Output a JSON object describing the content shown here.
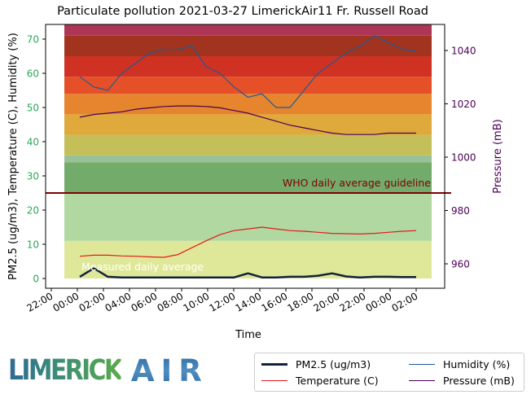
{
  "chart_data": {
    "type": "line",
    "title": "Particulate pollution 2021-03-27 LimerickAir11 Fr. Russell Road",
    "xlabel": "Time",
    "ylabel": "PM2.5 (ug/m3), Temperature (C), Humidity (%)",
    "ylabel_right": "Pressure (mB)",
    "ylim": [
      -1.5,
      75.5
    ],
    "ylim_right": [
      951,
      1050
    ],
    "yticks": [
      0,
      10,
      20,
      30,
      40,
      50,
      60,
      70
    ],
    "yticks_right": [
      960,
      980,
      1000,
      1020,
      1040
    ],
    "xticks": [
      "22:00",
      "00:00",
      "02:00",
      "04:00",
      "06:00",
      "08:00",
      "10:00",
      "12:00",
      "14:00",
      "16:00",
      "18:00",
      "20:00",
      "22:00",
      "00:00",
      "02:00"
    ],
    "grid": false,
    "legend_position": "below-right",
    "legend": [
      "PM2.5 (ug/m3)",
      "Temperature (C)",
      "Humidity (%)",
      "Pressure (mB)"
    ],
    "annotations": [
      {
        "text": "WHO daily average guideline",
        "y": 25,
        "color": "#7f0000"
      },
      {
        "text": "Measured daily average",
        "y": 1,
        "color": "#ffffff"
      }
    ],
    "guideline_value": 25,
    "x_hours": [
      0,
      1,
      2,
      3,
      4,
      5,
      6,
      7,
      8,
      9,
      10,
      11,
      12,
      13,
      14,
      15,
      16,
      17,
      18,
      19,
      20,
      21,
      22,
      23,
      24
    ],
    "series": [
      {
        "name": "PM2.5 (ug/m3)",
        "color": "#14213d",
        "values": [
          0.5,
          3,
          0.5,
          0.3,
          0.3,
          0.3,
          0.3,
          0.3,
          0.3,
          0.3,
          0.3,
          0.3,
          1.5,
          0.3,
          0.3,
          0.5,
          0.5,
          0.8,
          1.5,
          0.6,
          0.3,
          0.5,
          0.5,
          0.4,
          0.4
        ]
      },
      {
        "name": "Temperature (C)",
        "color": "#e41a1c",
        "values": [
          6.5,
          6.8,
          6.8,
          6.6,
          6.5,
          6.3,
          6.2,
          7.0,
          9.0,
          11.0,
          12.8,
          14.0,
          14.5,
          15.0,
          14.5,
          14.0,
          13.8,
          13.5,
          13.2,
          13.1,
          13.0,
          13.2,
          13.5,
          13.8,
          14.0
        ]
      },
      {
        "name": "Humidity (%)",
        "color": "#1f5a96",
        "values": [
          59,
          56,
          55,
          60,
          63,
          66,
          67,
          67,
          68,
          62,
          60,
          56,
          53,
          54,
          50,
          50,
          55,
          60,
          63,
          66,
          68,
          71,
          69,
          67,
          66.5
        ]
      },
      {
        "name": "Pressure (mB)",
        "color": "#4b0055",
        "values": [
          1015,
          1016,
          1016.5,
          1017,
          1018,
          1018.5,
          1019,
          1019.2,
          1019.2,
          1019,
          1018.5,
          1017.5,
          1016.5,
          1015,
          1013.5,
          1012,
          1011,
          1010,
          1009,
          1008.5,
          1008.5,
          1008.5,
          1009,
          1009,
          1009
        ]
      }
    ],
    "aqi_bands": [
      {
        "from": 0,
        "to": 11,
        "color": "#dfe899"
      },
      {
        "from": 11,
        "to": 25,
        "color": "#b0d8a0"
      },
      {
        "from": 25,
        "to": 34,
        "color": "#73ab6a"
      },
      {
        "from": 34,
        "to": 36,
        "color": "#98c198"
      },
      {
        "from": 36,
        "to": 42,
        "color": "#c4bf58"
      },
      {
        "from": 42,
        "to": 48,
        "color": "#dfa93b"
      },
      {
        "from": 48,
        "to": 54,
        "color": "#e6852d"
      },
      {
        "from": 54,
        "to": 59,
        "color": "#e55028"
      },
      {
        "from": 59,
        "to": 65,
        "color": "#cf3223"
      },
      {
        "from": 65,
        "to": 71,
        "color": "#a2331f"
      },
      {
        "from": 71,
        "to": 75.5,
        "color": "#ad3656"
      }
    ]
  },
  "colors": {
    "left_tick_color": "#2ca85a",
    "right_tick_color": "#4b0055",
    "guideline_color": "#7f0000"
  },
  "logo": {
    "word1": "LIMERICK",
    "word2": "AIR"
  },
  "legend_items": [
    {
      "label": "PM2.5 (ug/m3)",
      "color": "#14213d",
      "width": 3
    },
    {
      "label": "Humidity (%)",
      "color": "#1f5a96",
      "width": 1.5
    },
    {
      "label": "Temperature (C)",
      "color": "#e41a1c",
      "width": 1.5
    },
    {
      "label": "Pressure (mB)",
      "color": "#4b0055",
      "width": 1.5
    }
  ]
}
